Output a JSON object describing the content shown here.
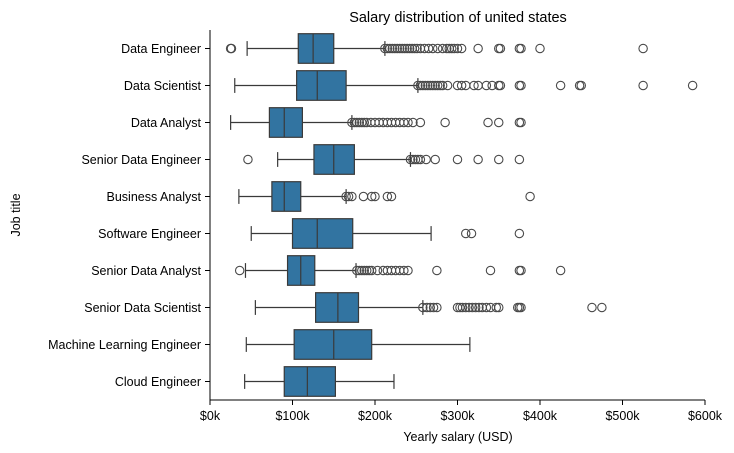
{
  "chart_data": {
    "type": "box",
    "orientation": "horizontal",
    "title": "Salary distribution of united states",
    "xlabel": "Yearly salary (USD)",
    "ylabel": "Job title",
    "xlim": [
      0,
      600000
    ],
    "xticks": [
      0,
      100000,
      200000,
      300000,
      400000,
      500000,
      600000
    ],
    "xtick_labels": [
      "$0k",
      "$100k",
      "$200k",
      "$300k",
      "$400k",
      "$500k",
      "$600k"
    ],
    "grid": false,
    "legend": "none",
    "colors": {
      "box_fill": "#3274a1",
      "line": "#3a3a3a",
      "flier": "#4a4a4a"
    },
    "categories": [
      "Data Engineer",
      "Data Scientist",
      "Data Analyst",
      "Senior Data Engineer",
      "Business Analyst",
      "Software Engineer",
      "Senior Data Analyst",
      "Senior Data Scientist",
      "Machine Learning Engineer",
      "Cloud Engineer"
    ],
    "boxes": [
      {
        "category": "Data Engineer",
        "whisker_low": 45000,
        "q1": 107000,
        "median": 125000,
        "q3": 150000,
        "whisker_high": 212000,
        "outliers": [
          25000,
          26000,
          212000,
          215000,
          218000,
          221000,
          224000,
          227000,
          230000,
          233000,
          236000,
          239000,
          242000,
          245000,
          248000,
          251000,
          255000,
          260000,
          265000,
          270000,
          276000,
          282000,
          287000,
          290000,
          293000,
          296000,
          300000,
          305000,
          325000,
          350000,
          352000,
          375000,
          377000,
          400000,
          525000
        ]
      },
      {
        "category": "Data Scientist",
        "whisker_low": 30000,
        "q1": 105000,
        "median": 130000,
        "q3": 165000,
        "whisker_high": 252000,
        "outliers": [
          252000,
          255000,
          258000,
          261000,
          264000,
          267000,
          270000,
          273000,
          276000,
          279000,
          282000,
          288000,
          300000,
          305000,
          310000,
          320000,
          325000,
          335000,
          342000,
          350000,
          352000,
          375000,
          377000,
          425000,
          448000,
          450000,
          525000,
          585000
        ]
      },
      {
        "category": "Data Analyst",
        "whisker_low": 25000,
        "q1": 72000,
        "median": 90000,
        "q3": 112000,
        "whisker_high": 172000,
        "outliers": [
          172000,
          175000,
          178000,
          181000,
          184000,
          187000,
          190000,
          195000,
          200000,
          205000,
          210000,
          215000,
          220000,
          225000,
          230000,
          235000,
          240000,
          246000,
          255000,
          285000,
          337000,
          350000,
          375000,
          377000
        ]
      },
      {
        "category": "Senior Data Engineer",
        "whisker_low": 82000,
        "q1": 126000,
        "median": 150000,
        "q3": 175000,
        "whisker_high": 243000,
        "outliers": [
          46000,
          243000,
          246000,
          249000,
          252000,
          255000,
          262000,
          273000,
          300000,
          325000,
          350000,
          375000
        ]
      },
      {
        "category": "Business Analyst",
        "whisker_low": 35000,
        "q1": 75000,
        "median": 90000,
        "q3": 110000,
        "whisker_high": 165000,
        "outliers": [
          165000,
          168000,
          172000,
          186000,
          196000,
          200000,
          215000,
          220000,
          388000
        ]
      },
      {
        "category": "Software Engineer",
        "whisker_low": 50000,
        "q1": 100000,
        "median": 130000,
        "q3": 173000,
        "whisker_high": 268000,
        "outliers": [
          310000,
          317000,
          375000
        ]
      },
      {
        "category": "Senior Data Analyst",
        "whisker_low": 43000,
        "q1": 94000,
        "median": 110000,
        "q3": 127000,
        "whisker_high": 177000,
        "outliers": [
          36000,
          178000,
          181000,
          184000,
          187000,
          190000,
          193000,
          196000,
          203000,
          210000,
          215000,
          220000,
          225000,
          230000,
          235000,
          240000,
          275000,
          340000,
          375000,
          377000,
          425000
        ]
      },
      {
        "category": "Senior Data Scientist",
        "whisker_low": 55000,
        "q1": 128000,
        "median": 155000,
        "q3": 180000,
        "whisker_high": 258000,
        "outliers": [
          258000,
          263000,
          267000,
          271000,
          275000,
          300000,
          303000,
          306000,
          310000,
          314000,
          318000,
          322000,
          326000,
          330000,
          335000,
          340000,
          347000,
          350000,
          373000,
          375000,
          377000,
          463000,
          475000
        ]
      },
      {
        "category": "Machine Learning Engineer",
        "whisker_low": 44000,
        "q1": 102000,
        "median": 150000,
        "q3": 196000,
        "whisker_high": 315000,
        "outliers": []
      },
      {
        "category": "Cloud Engineer",
        "whisker_low": 42000,
        "q1": 90000,
        "median": 118000,
        "q3": 152000,
        "whisker_high": 223000,
        "outliers": []
      }
    ]
  }
}
